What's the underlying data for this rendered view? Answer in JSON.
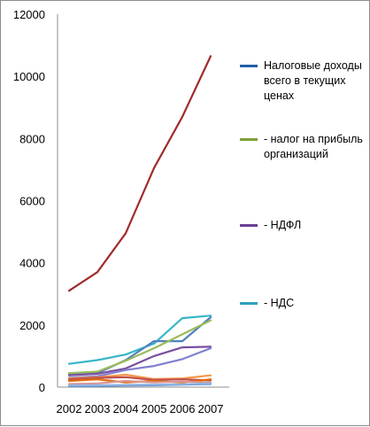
{
  "chart_data": {
    "type": "line",
    "x": [
      "2002",
      "2003",
      "2004",
      "2005",
      "2006",
      "2007"
    ],
    "ylim": [
      0,
      12000
    ],
    "yticks": [
      "0",
      "2000",
      "4000",
      "6000",
      "8000",
      "10000",
      "12000"
    ],
    "grid": false,
    "legend_position": "right",
    "series": [
      {
        "name": "",
        "color": "#a02b2b",
        "values": [
          3100,
          3700,
          4950,
          7050,
          8700,
          10650
        ]
      },
      {
        "name": "",
        "color": "#38b6c8",
        "values": [
          750,
          870,
          1050,
          1400,
          2220,
          2300
        ]
      },
      {
        "name": "",
        "color": "#4f81bd",
        "values": [
          420,
          450,
          870,
          1480,
          1480,
          2250
        ]
      },
      {
        "name": "",
        "color": "#9bbb59",
        "values": [
          450,
          500,
          850,
          1250,
          1700,
          2150
        ]
      },
      {
        "name": "",
        "color": "#7a4fa0",
        "values": [
          380,
          430,
          600,
          1000,
          1280,
          1300
        ]
      },
      {
        "name": "",
        "color": "#7f7fd0",
        "values": [
          300,
          350,
          550,
          680,
          900,
          1250
        ]
      },
      {
        "name": "",
        "color": "#f79646",
        "values": [
          280,
          320,
          400,
          260,
          280,
          380
        ]
      },
      {
        "name": "",
        "color": "#c0504d",
        "values": [
          250,
          300,
          320,
          230,
          250,
          220
        ]
      },
      {
        "name": "",
        "color": "#e26b0a",
        "values": [
          200,
          250,
          150,
          200,
          150,
          250
        ]
      },
      {
        "name": "",
        "color": "#d99694",
        "values": [
          100,
          120,
          200,
          150,
          180,
          150
        ]
      },
      {
        "name": "",
        "color": "#548dd4",
        "values": [
          30,
          40,
          50,
          60,
          80,
          100
        ]
      },
      {
        "name": "",
        "color": "#8db3e2",
        "values": [
          50,
          60,
          70,
          80,
          90,
          120
        ]
      }
    ]
  },
  "legend": [
    {
      "label": "Налоговые доходы всего в текущих ценах",
      "color": "#1f5fa8"
    },
    {
      "label": "- налог на прибыль организаций",
      "color": "#7f9f3a"
    },
    {
      "label": "- НДФЛ",
      "color": "#6a3f93"
    },
    {
      "label": "- НДС",
      "color": "#2f9fc0"
    }
  ]
}
